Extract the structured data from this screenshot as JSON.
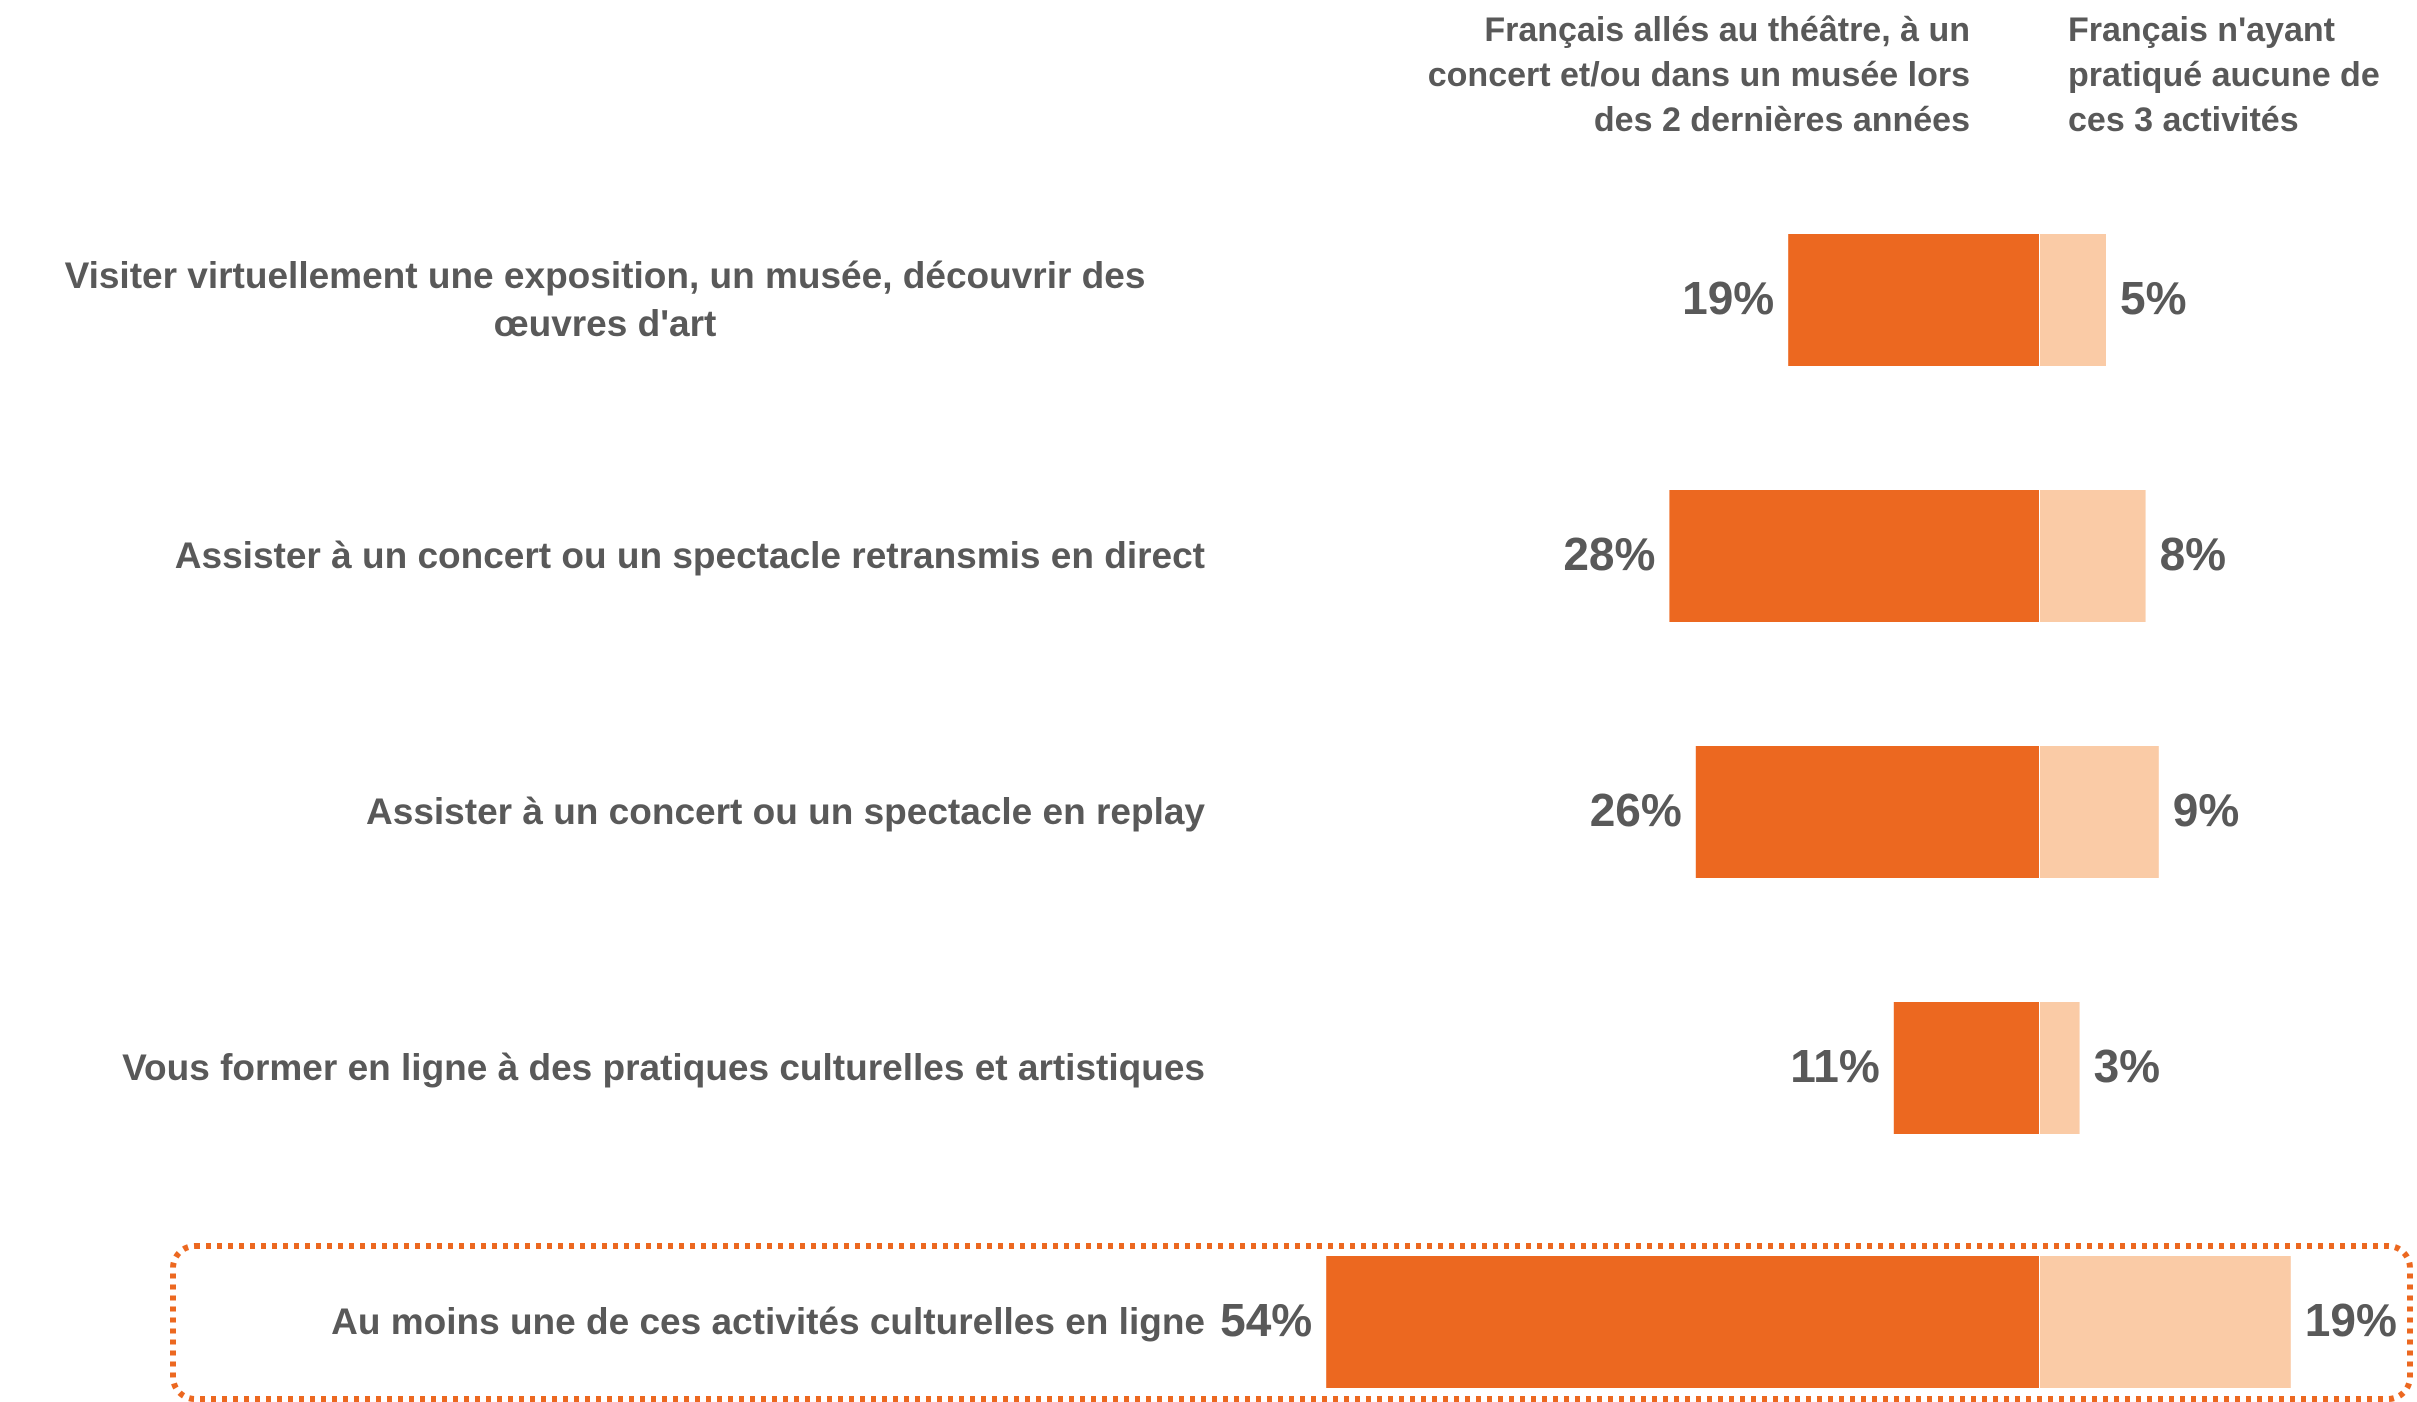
{
  "chart_data": {
    "type": "bar",
    "categories": [
      "Visiter virtuellement une exposition, un musée, découvrir des œuvres d'art",
      "Assister à un concert ou un spectacle retransmis en direct",
      "Assister à un concert ou un spectacle en replay",
      "Vous former en ligne à des pratiques culturelles et artistiques",
      "Au moins une de ces activités culturelles en ligne"
    ],
    "series": [
      {
        "name": "Français allés au théâtre, à un concert et/ou dans un musée lors des 2 dernières années",
        "color": "#ec6820",
        "values": [
          19,
          28,
          26,
          11,
          54
        ],
        "value_labels": [
          "19%",
          "28%",
          "26%",
          "11%",
          "54%"
        ]
      },
      {
        "name": "Français n'ayant pratiqué aucune de ces 3 activités",
        "color": "#facba6",
        "values": [
          5,
          8,
          9,
          3,
          19
        ],
        "value_labels": [
          "5%",
          "8%",
          "9%",
          "3%",
          "19%"
        ]
      }
    ]
  }
}
